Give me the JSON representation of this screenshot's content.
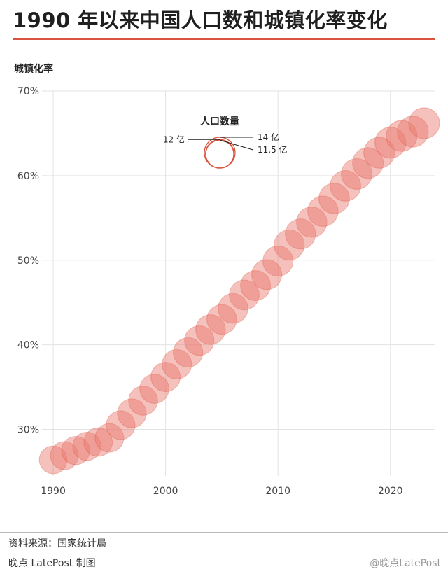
{
  "header": {
    "title": "1990 年以来中国人口数和城镇化率变化"
  },
  "footer": {
    "source": "资料来源：国家统计局",
    "credit": "晚点 LatePost 制图",
    "weibo": "@晚点LatePost"
  },
  "colors": {
    "accent": "#d9533e",
    "bubble_fill": "#e8766a",
    "bubble_stroke": "#d9533e",
    "grid": "#e3e3e3"
  },
  "chart_data": {
    "type": "scatter",
    "title": "1990 年以来中国人口数和城镇化率变化",
    "ylabel": "城镇化率",
    "xlabel": "",
    "xlim": [
      1989,
      2024
    ],
    "ylim": [
      24.5,
      70
    ],
    "x_ticks": [
      "1990",
      "2000",
      "2010",
      "2020"
    ],
    "x_tick_values": [
      1990,
      2000,
      2010,
      2020
    ],
    "y_ticks": [
      "30%",
      "40%",
      "50%",
      "60%",
      "70%"
    ],
    "y_tick_values": [
      30,
      40,
      50,
      60,
      70
    ],
    "grid": true,
    "size_legend": {
      "title": "人口数量",
      "unit": "亿",
      "entries": [
        {
          "label": "14 亿",
          "value": 14.0
        },
        {
          "label": "12 亿",
          "value": 12.0
        },
        {
          "label": "11.5 亿",
          "value": 11.5
        }
      ]
    },
    "series": [
      {
        "x": [
          1990,
          1991,
          1992,
          1993,
          1994,
          1995,
          1996,
          1997,
          1998,
          1999,
          2000,
          2001,
          2002,
          2003,
          2004,
          2005,
          2006,
          2007,
          2008,
          2009,
          2010,
          2011,
          2012,
          2013,
          2014,
          2015,
          2016,
          2017,
          2018,
          2019,
          2020,
          2021,
          2022,
          2023
        ],
        "y": [
          26.4,
          26.9,
          27.5,
          28.0,
          28.5,
          29.0,
          30.5,
          31.9,
          33.4,
          34.8,
          36.2,
          37.7,
          39.1,
          40.5,
          41.8,
          43.0,
          44.3,
          45.9,
          47.0,
          48.3,
          49.9,
          51.8,
          53.1,
          54.5,
          55.8,
          57.3,
          58.8,
          60.2,
          61.5,
          62.7,
          63.9,
          64.7,
          65.2,
          66.2
        ],
        "population": [
          11.43,
          11.58,
          11.72,
          11.85,
          11.99,
          12.11,
          12.24,
          12.36,
          12.48,
          12.58,
          12.67,
          12.76,
          12.85,
          12.92,
          13.0,
          13.08,
          13.14,
          13.21,
          13.28,
          13.35,
          13.41,
          13.47,
          13.54,
          13.61,
          13.68,
          13.75,
          13.83,
          13.9,
          13.95,
          14.0,
          14.12,
          14.13,
          14.12,
          14.1
        ]
      }
    ]
  }
}
